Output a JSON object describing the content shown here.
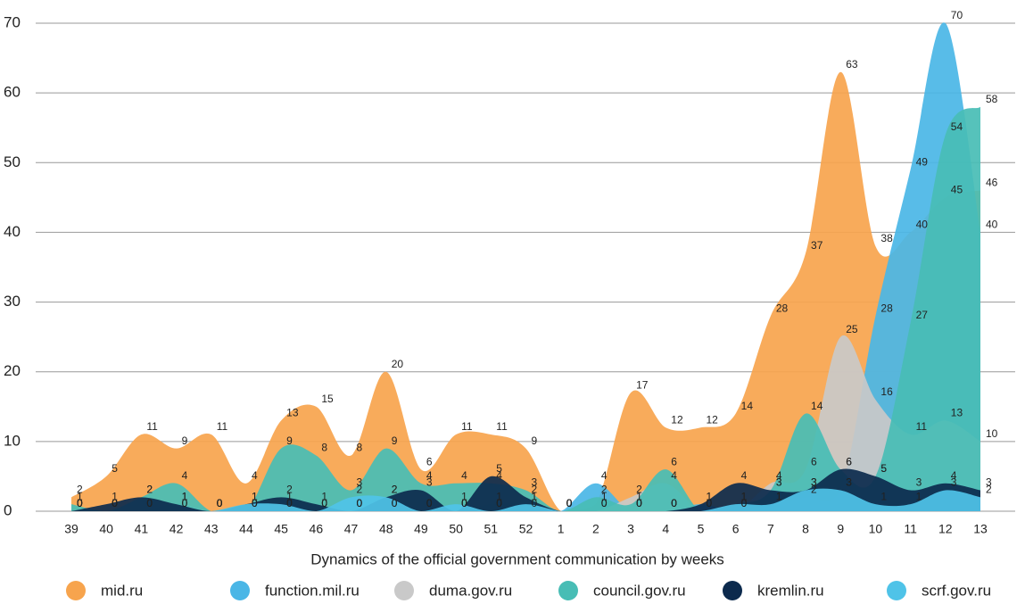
{
  "chart_data": {
    "type": "area",
    "x_label": "Dynamics of the official government communication by weeks",
    "categories": [
      "39",
      "40",
      "41",
      "42",
      "43",
      "44",
      "45",
      "46",
      "47",
      "48",
      "49",
      "50",
      "51",
      "52",
      "1",
      "2",
      "3",
      "4",
      "5",
      "6",
      "7",
      "8",
      "9",
      "10",
      "11",
      "12",
      "13"
    ],
    "ylim": [
      0,
      70
    ],
    "yticks": [
      0,
      10,
      20,
      30,
      40,
      50,
      60,
      70
    ],
    "grid": true,
    "legend": "bottom",
    "series": [
      {
        "name": "mid.ru",
        "color": "#f7a44d",
        "values": [
          2,
          5,
          11,
          9,
          11,
          4,
          13,
          15,
          8,
          20,
          6,
          11,
          11,
          9,
          0,
          1,
          17,
          12,
          12,
          14,
          28,
          37,
          63,
          38,
          40,
          45,
          46
        ]
      },
      {
        "name": "function.mil.ru",
        "color": "#4ab6e6",
        "values": [
          0,
          0,
          0,
          0,
          0,
          0,
          0,
          0,
          0,
          0,
          0,
          0,
          0,
          0,
          0,
          4,
          0,
          0,
          1,
          0,
          1,
          2,
          3,
          28,
          49,
          70,
          40
        ]
      },
      {
        "name": "duma.gov.ru",
        "color": "#c9c9c9",
        "values": [
          0,
          0,
          0,
          1,
          0,
          0,
          0,
          0,
          0,
          0,
          0,
          0,
          1,
          1,
          0,
          0,
          2,
          4,
          0,
          0,
          4,
          6,
          25,
          16,
          11,
          13,
          10
        ]
      },
      {
        "name": "council.gov.ru",
        "color": "#48bdb5",
        "values": [
          1,
          0,
          2,
          4,
          0,
          0,
          9,
          8,
          3,
          9,
          4,
          4,
          4,
          3,
          0,
          2,
          1,
          6,
          0,
          1,
          3,
          14,
          6,
          5,
          27,
          54,
          58
        ]
      },
      {
        "name": "kremlin.ru",
        "color": "#0c2a4d",
        "values": [
          0,
          1,
          2,
          1,
          0,
          1,
          2,
          1,
          0,
          2,
          3,
          0,
          5,
          2,
          0,
          0,
          0,
          0,
          1,
          4,
          3,
          3,
          6,
          5,
          3,
          4,
          3
        ]
      },
      {
        "name": "scrf.gov.ru",
        "color": "#4fc3e8",
        "values": [
          0,
          0,
          0,
          0,
          0,
          1,
          1,
          0,
          2,
          2,
          0,
          1,
          0,
          1,
          0,
          0,
          0,
          0,
          0,
          1,
          1,
          3,
          3,
          1,
          1,
          3,
          2
        ]
      }
    ]
  }
}
